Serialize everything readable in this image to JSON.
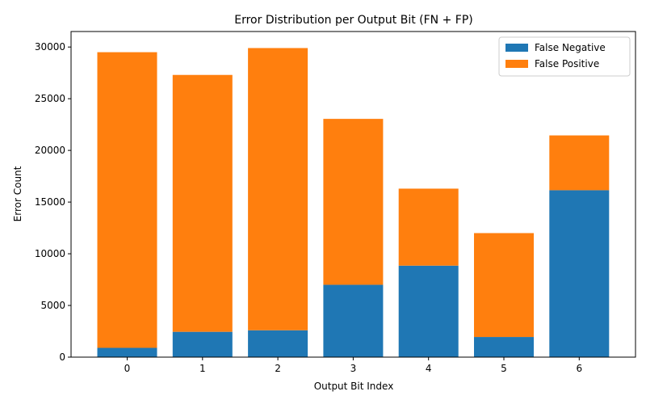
{
  "chart_data": {
    "type": "bar",
    "stacked": true,
    "title": "Error Distribution per Output Bit (FN + FP)",
    "xlabel": "Output Bit Index",
    "ylabel": "Error Count",
    "categories": [
      "0",
      "1",
      "2",
      "3",
      "4",
      "5",
      "6"
    ],
    "series": [
      {
        "name": "False Negative",
        "color": "#1f77b4",
        "values": [
          900,
          2450,
          2600,
          7000,
          8850,
          1950,
          16150
        ]
      },
      {
        "name": "False Positive",
        "color": "#ff7f0e",
        "values": [
          28600,
          24850,
          27300,
          16050,
          7450,
          10050,
          5300
        ]
      }
    ],
    "ylim": [
      0,
      31500
    ],
    "yticks": [
      0,
      5000,
      10000,
      15000,
      20000,
      25000,
      30000
    ],
    "grid": false,
    "legend": "top-right"
  }
}
